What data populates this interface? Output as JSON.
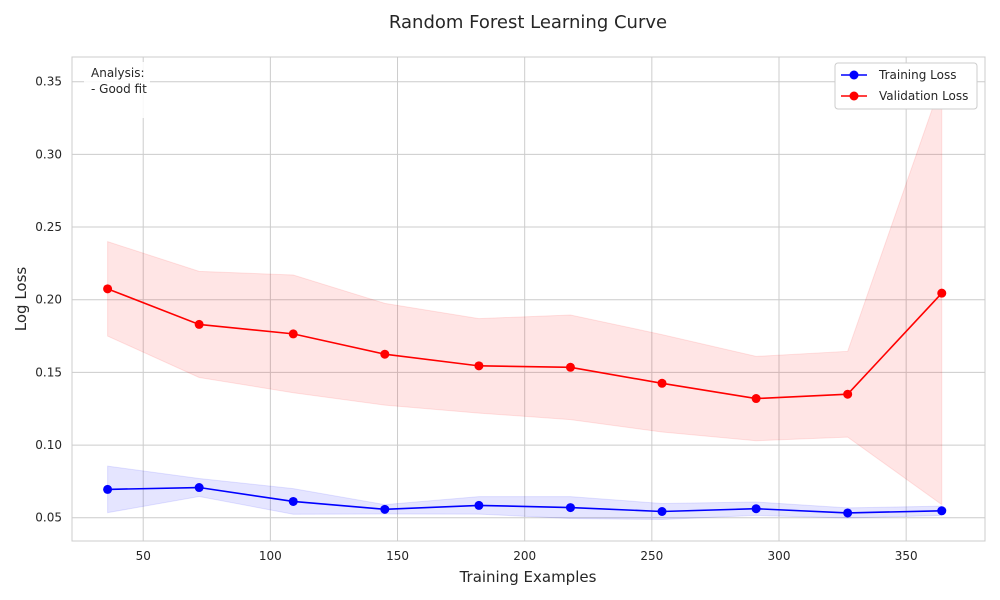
{
  "chart_data": {
    "type": "line",
    "title": "Random Forest Learning Curve",
    "xlabel": "Training Examples",
    "ylabel": "Log Loss",
    "xlim": [
      22,
      381
    ],
    "ylim": [
      0.034,
      0.367
    ],
    "xticks": [
      50,
      100,
      150,
      200,
      250,
      300,
      350
    ],
    "yticks": [
      0.05,
      0.1,
      0.15,
      0.2,
      0.25,
      0.3,
      0.35
    ],
    "ytick_labels": [
      "0.05",
      "0.10",
      "0.15",
      "0.20",
      "0.25",
      "0.30",
      "0.35"
    ],
    "grid": true,
    "legend_position": "top-right",
    "x": [
      36,
      72,
      109,
      145,
      182,
      218,
      254,
      291,
      327,
      364
    ],
    "series": [
      {
        "name": "Training Loss",
        "color": "#0000ff",
        "band_color": "#0000ff",
        "values": [
          0.0695,
          0.0708,
          0.0612,
          0.0558,
          0.0585,
          0.057,
          0.0543,
          0.0562,
          0.0533,
          0.0548
        ],
        "upper": [
          0.0855,
          0.077,
          0.07,
          0.059,
          0.0645,
          0.0645,
          0.0598,
          0.0608,
          0.0568,
          0.058
        ],
        "lower": [
          0.0535,
          0.0646,
          0.0524,
          0.0526,
          0.0525,
          0.0495,
          0.0488,
          0.0516,
          0.0498,
          0.0516
        ]
      },
      {
        "name": "Validation Loss",
        "color": "#ff0000",
        "band_color": "#ff0000",
        "values": [
          0.2075,
          0.183,
          0.1765,
          0.1625,
          0.1545,
          0.1535,
          0.1425,
          0.132,
          0.135,
          0.2045
        ],
        "upper": [
          0.24,
          0.2195,
          0.217,
          0.1975,
          0.187,
          0.1895,
          0.176,
          0.161,
          0.1645,
          0.35
        ],
        "lower": [
          0.175,
          0.1465,
          0.136,
          0.1275,
          0.122,
          0.1175,
          0.109,
          0.103,
          0.1055,
          0.059
        ]
      }
    ],
    "annotation": {
      "lines": [
        "Analysis:",
        "- Good fit"
      ]
    }
  }
}
